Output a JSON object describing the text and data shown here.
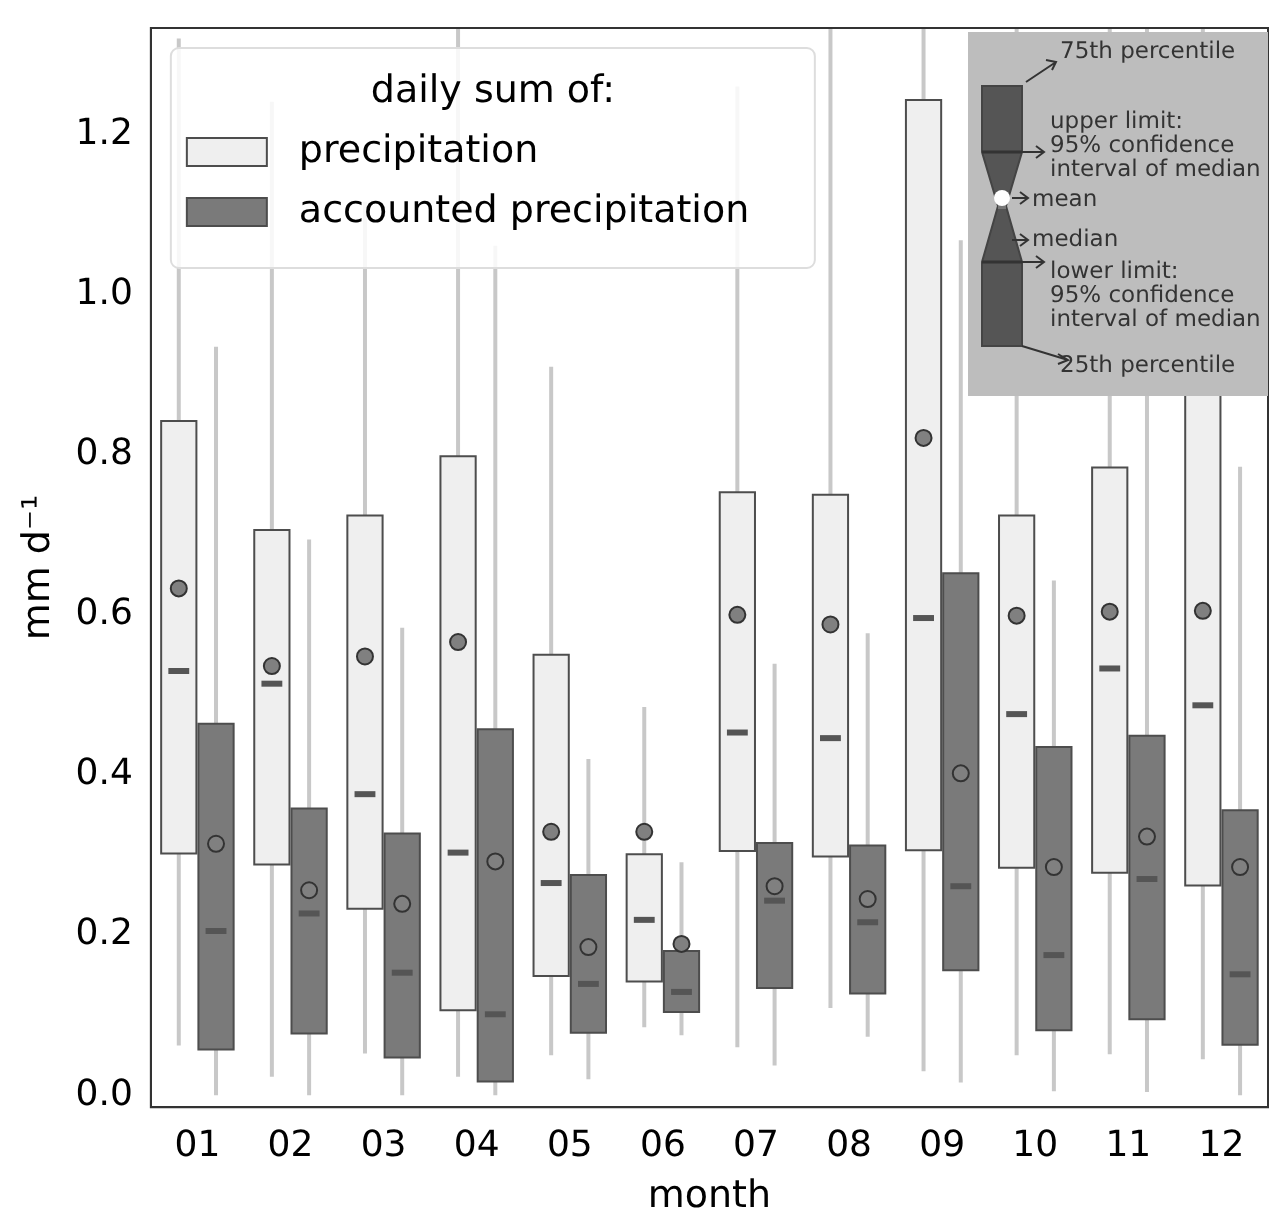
{
  "chart_data": {
    "type": "box",
    "categories": [
      "01",
      "02",
      "03",
      "04",
      "05",
      "06",
      "07",
      "08",
      "09",
      "10",
      "11",
      "12"
    ],
    "xlabel": "month",
    "ylabel": "mm d⁻¹",
    "legend_title": "daily sum of:",
    "legend": "top left",
    "grid": false,
    "ylim": [
      -0.015,
      1.333
    ],
    "yticks": [
      {
        "value": 0,
        "label": "0.0"
      },
      {
        "value": 0.2,
        "label": "0.2"
      },
      {
        "value": 0.4,
        "label": "0.4"
      },
      {
        "value": 0.6,
        "label": "0.6"
      },
      {
        "value": 0.8,
        "label": "0.8"
      },
      {
        "value": 1.0,
        "label": "1.0"
      },
      {
        "value": 1.2,
        "label": "1.2"
      }
    ],
    "series": [
      {
        "name": "precipitation",
        "color": "#efefef",
        "boxes": [
          {
            "low": 0.062,
            "q1": 0.302,
            "median": 0.53,
            "q3": 0.842,
            "high": 1.32,
            "mean": 0.633
          },
          {
            "low": 0.023,
            "q1": 0.288,
            "median": 0.514,
            "q3": 0.706,
            "high": 1.241,
            "mean": 0.536
          },
          {
            "low": 0.052,
            "q1": 0.233,
            "median": 0.376,
            "q3": 0.724,
            "high": 1.116,
            "mean": 0.548
          },
          {
            "low": 0.023,
            "q1": 0.106,
            "median": 0.303,
            "q3": 0.798,
            "high": 1.333,
            "mean": 0.566
          },
          {
            "low": 0.05,
            "q1": 0.149,
            "median": 0.265,
            "q3": 0.55,
            "high": 0.91,
            "mean": 0.329
          },
          {
            "low": 0.085,
            "q1": 0.142,
            "median": 0.219,
            "q3": 0.301,
            "high": 0.485,
            "mean": 0.329
          },
          {
            "low": 0.06,
            "q1": 0.305,
            "median": 0.453,
            "q3": 0.753,
            "high": 1.26,
            "mean": 0.6
          },
          {
            "low": 0.109,
            "q1": 0.298,
            "median": 0.446,
            "q3": 0.75,
            "high": 1.333,
            "mean": 0.588
          },
          {
            "low": 0.03,
            "q1": 0.306,
            "median": 0.596,
            "q3": 1.243,
            "high": 1.333,
            "mean": 0.821
          },
          {
            "low": 0.05,
            "q1": 0.284,
            "median": 0.476,
            "q3": 0.724,
            "high": 1.333,
            "mean": 0.599
          },
          {
            "low": 0.051,
            "q1": 0.278,
            "median": 0.533,
            "q3": 0.784,
            "high": 1.333,
            "mean": 0.604
          },
          {
            "low": 0.045,
            "q1": 0.262,
            "median": 0.487,
            "q3": 0.875,
            "high": 1.333,
            "mean": 0.605
          }
        ]
      },
      {
        "name": "accounted precipitation",
        "color": "#7a7a7a",
        "boxes": [
          {
            "low": 0.0,
            "q1": 0.057,
            "median": 0.205,
            "q3": 0.464,
            "high": 0.935,
            "mean": 0.314
          },
          {
            "low": 0.0,
            "q1": 0.077,
            "median": 0.227,
            "q3": 0.358,
            "high": 0.694,
            "mean": 0.256
          },
          {
            "low": 0.0,
            "q1": 0.047,
            "median": 0.153,
            "q3": 0.327,
            "high": 0.584,
            "mean": 0.239
          },
          {
            "low": 0.0,
            "q1": 0.017,
            "median": 0.101,
            "q3": 0.457,
            "high": 1.061,
            "mean": 0.292
          },
          {
            "low": 0.02,
            "q1": 0.078,
            "median": 0.139,
            "q3": 0.275,
            "high": 0.42,
            "mean": 0.185
          },
          {
            "low": 0.075,
            "q1": 0.104,
            "median": 0.129,
            "q3": 0.18,
            "high": 0.291,
            "mean": 0.189
          },
          {
            "low": 0.037,
            "q1": 0.134,
            "median": 0.243,
            "q3": 0.315,
            "high": 0.539,
            "mean": 0.261
          },
          {
            "low": 0.073,
            "q1": 0.127,
            "median": 0.216,
            "q3": 0.312,
            "high": 0.577,
            "mean": 0.245
          },
          {
            "low": 0.016,
            "q1": 0.156,
            "median": 0.261,
            "q3": 0.652,
            "high": 1.068,
            "mean": 0.402
          },
          {
            "low": 0.005,
            "q1": 0.081,
            "median": 0.175,
            "q3": 0.435,
            "high": 0.643,
            "mean": 0.285
          },
          {
            "low": 0.004,
            "q1": 0.095,
            "median": 0.27,
            "q3": 0.449,
            "high": 1.333,
            "mean": 0.323
          },
          {
            "low": 0.0,
            "q1": 0.063,
            "median": 0.151,
            "q3": 0.356,
            "high": 0.785,
            "mean": 0.285
          }
        ]
      }
    ],
    "annotations": [
      "75th percentile",
      "upper limit:\n95% confidence\ninterval of median",
      "mean",
      "median",
      "lower limit:\n95% confidence\ninterval of median",
      "25th percentile"
    ]
  }
}
